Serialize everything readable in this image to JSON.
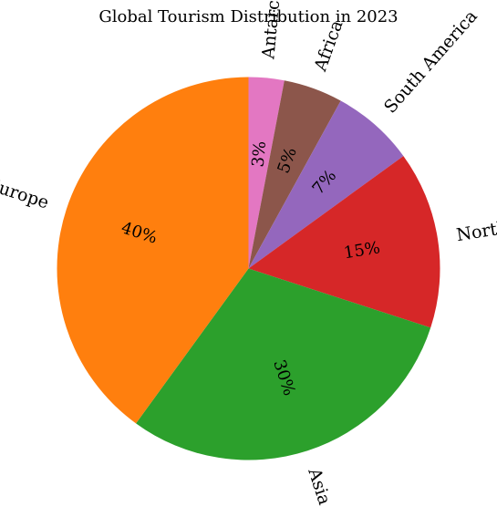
{
  "chart_data": {
    "type": "pie",
    "title": "Global Tourism Distribution in 2023",
    "start_angle_deg": 90,
    "direction": "clockwise",
    "slices": [
      {
        "label": "Antarctica",
        "value": 3,
        "pct_label": "3%",
        "color": "#e377c2"
      },
      {
        "label": "Africa",
        "value": 5,
        "pct_label": "5%",
        "color": "#8c564b"
      },
      {
        "label": "South America",
        "value": 7,
        "pct_label": "7%",
        "color": "#9467bd"
      },
      {
        "label": "North America",
        "value": 15,
        "pct_label": "15%",
        "color": "#d62728"
      },
      {
        "label": "Asia",
        "value": 30,
        "pct_label": "30%",
        "color": "#2ca02c"
      },
      {
        "label": "Europe",
        "value": 40,
        "pct_label": "40%",
        "color": "#ff7f0e"
      }
    ]
  }
}
